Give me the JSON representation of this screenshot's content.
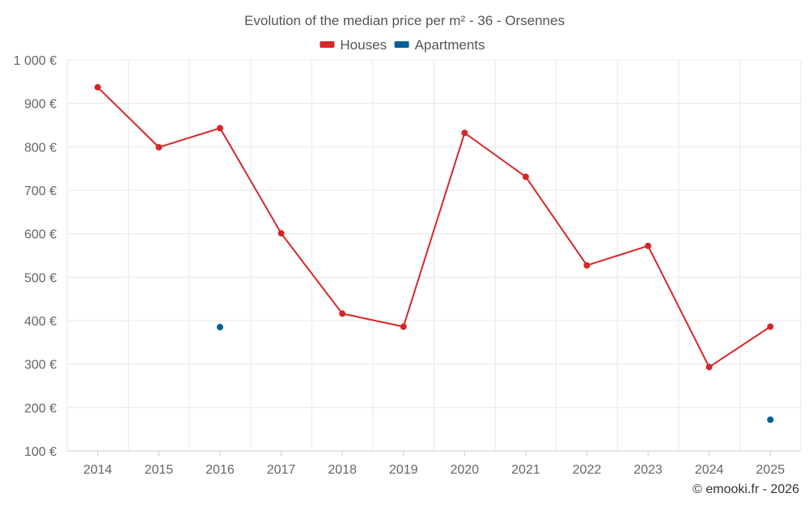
{
  "chart_data": {
    "type": "line",
    "title": "Evolution of the median price per m² - 36 - Orsennes",
    "categories": [
      "2014",
      "2015",
      "2016",
      "2017",
      "2018",
      "2019",
      "2020",
      "2021",
      "2022",
      "2023",
      "2024",
      "2025"
    ],
    "series": [
      {
        "name": "Houses",
        "color": "#d62728",
        "values": [
          937,
          799,
          843,
          601,
          416,
          386,
          832,
          731,
          527,
          572,
          293,
          386
        ]
      },
      {
        "name": "Apartments",
        "color": "#005f96",
        "values": [
          null,
          null,
          385,
          null,
          null,
          null,
          null,
          null,
          null,
          null,
          null,
          172
        ]
      }
    ],
    "yticks": [
      100,
      200,
      300,
      400,
      500,
      600,
      700,
      800,
      900,
      1000
    ],
    "ytick_labels": [
      "100 €",
      "200 €",
      "300 €",
      "400 €",
      "500 €",
      "600 €",
      "700 €",
      "800 €",
      "900 €",
      "1 000 €"
    ],
    "ylim": [
      100,
      1000
    ],
    "xlabel": "",
    "ylabel": "",
    "grid": true,
    "legend": "top-center"
  },
  "credit": "© emooki.fr - 2026"
}
